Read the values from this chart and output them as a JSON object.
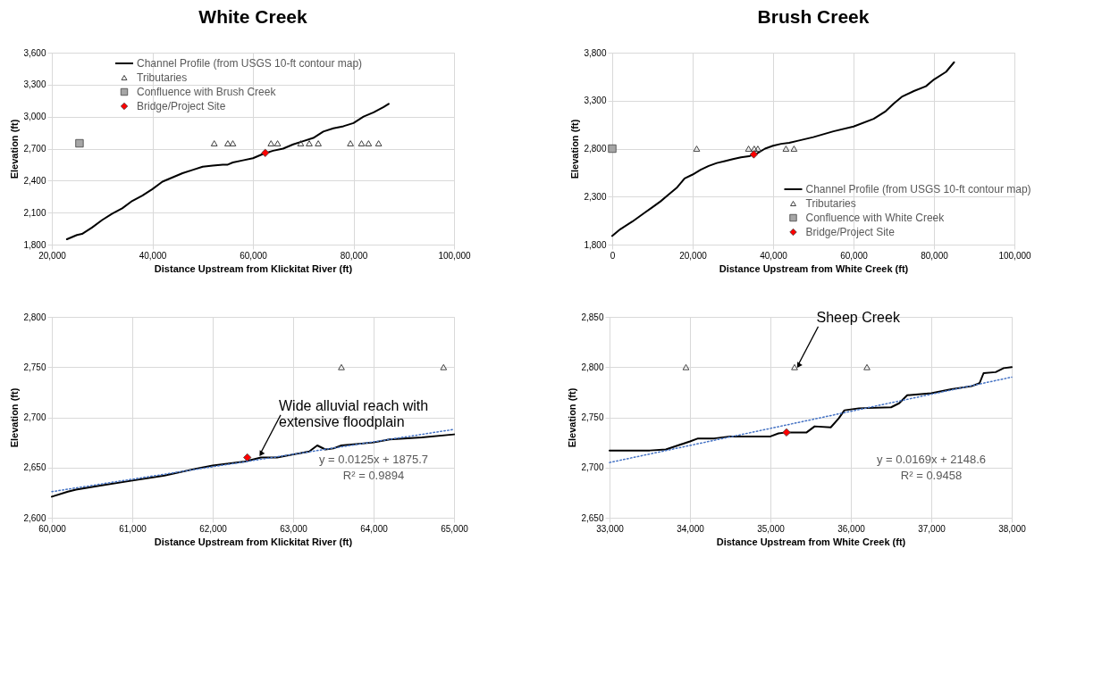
{
  "chart_data": [
    {
      "type": "line",
      "title": "White Creek",
      "xlabel": "Distance Upstream from Klickitat River (ft)",
      "ylabel": "Elevation (ft)",
      "xlim": [
        20000,
        100000
      ],
      "xticks": [
        {
          "value": 20000,
          "label": "20,000"
        },
        {
          "value": 40000,
          "label": "40,000"
        },
        {
          "value": 60000,
          "label": "60,000"
        },
        {
          "value": 80000,
          "label": "80,000"
        },
        {
          "value": 100000,
          "label": "100,000"
        }
      ],
      "ylim": [
        1800,
        3600
      ],
      "yticks": [
        {
          "value": 1800,
          "label": "1,800"
        },
        {
          "value": 2100,
          "label": "2,100"
        },
        {
          "value": 2400,
          "label": "2,400"
        },
        {
          "value": 2700,
          "label": "2,700"
        },
        {
          "value": 3000,
          "label": "3,000"
        },
        {
          "value": 3300,
          "label": "3,300"
        },
        {
          "value": 3600,
          "label": "3,600"
        }
      ],
      "grid": true,
      "legend": "top",
      "series": [
        {
          "name": "Channel Profile (from USGS 10-ft contour map)",
          "line_style": "solid",
          "marker": "none",
          "color": "#000000",
          "x": [
            23000,
            25000,
            26000,
            28000,
            30000,
            32000,
            34000,
            36000,
            38000,
            40000,
            42000,
            44000,
            46000,
            48000,
            50000,
            52000,
            54000,
            55000,
            56000,
            58000,
            60000,
            62000,
            64000,
            66000,
            68000,
            70000,
            72000,
            74000,
            76000,
            78000,
            80000,
            82000,
            84000,
            86000,
            87000
          ],
          "values": [
            1850,
            1890,
            1900,
            1960,
            2030,
            2090,
            2140,
            2210,
            2260,
            2320,
            2390,
            2430,
            2470,
            2500,
            2530,
            2540,
            2550,
            2550,
            2570,
            2590,
            2610,
            2650,
            2680,
            2700,
            2740,
            2770,
            2800,
            2860,
            2890,
            2910,
            2940,
            3000,
            3040,
            3090,
            3120
          ]
        },
        {
          "name": "Tributaries",
          "type": "scatter",
          "marker": "triangle",
          "color": "#404040",
          "x": [
            52300,
            55000,
            56000,
            63600,
            64900,
            69500,
            71200,
            73000,
            79400,
            81600,
            83000,
            85000
          ],
          "values": [
            2750,
            2750,
            2750,
            2750,
            2750,
            2750,
            2750,
            2750,
            2750,
            2750,
            2750,
            2750
          ]
        },
        {
          "name": "Confluence with Brush Creek",
          "type": "scatter",
          "marker": "square",
          "color": "#a6a6a6",
          "x": [
            25500
          ],
          "values": [
            2750
          ]
        },
        {
          "name": "Bridge/Project Site",
          "type": "scatter",
          "marker": "diamond",
          "color": "#ff0000",
          "x": [
            62450
          ],
          "values": [
            2660
          ]
        }
      ]
    },
    {
      "type": "line",
      "title": "Brush Creek",
      "xlabel": "Distance Upstream from White Creek (ft)",
      "ylabel": "Elevation (ft)",
      "xlim": [
        0,
        100000
      ],
      "xticks": [
        0,
        {
          "value": 20000,
          "label": "20,000"
        },
        {
          "value": 40000,
          "label": "40,000"
        },
        {
          "value": 60000,
          "label": "60,000"
        },
        {
          "value": 80000,
          "label": "80,000"
        },
        {
          "value": 100000,
          "label": "100,000"
        }
      ],
      "ylim": [
        1800,
        3800
      ],
      "yticks": [
        {
          "value": 1800,
          "label": "1,800"
        },
        {
          "value": 2300,
          "label": "2,300"
        },
        {
          "value": 2800,
          "label": "2,800"
        },
        {
          "value": 3300,
          "label": "3,300"
        },
        {
          "value": 3800,
          "label": "3,800"
        }
      ],
      "grid": true,
      "legend": "bottom right",
      "series": [
        {
          "name": "Channel Profile (from USGS 10-ft contour map)",
          "line_style": "solid",
          "marker": "none",
          "color": "#000000",
          "x": [
            0,
            2000,
            5000,
            8000,
            10000,
            12000,
            14000,
            16000,
            18000,
            20000,
            22000,
            24000,
            26000,
            28000,
            30000,
            32000,
            34000,
            36000,
            38000,
            40000,
            42000,
            44000,
            46000,
            50000,
            55000,
            60000,
            65000,
            68000,
            70000,
            72000,
            75000,
            78000,
            80000,
            83000,
            85000
          ],
          "values": [
            1890,
            1960,
            2040,
            2130,
            2190,
            2250,
            2320,
            2390,
            2490,
            2530,
            2580,
            2620,
            2650,
            2670,
            2690,
            2710,
            2720,
            2750,
            2800,
            2830,
            2850,
            2860,
            2880,
            2920,
            2980,
            3030,
            3110,
            3190,
            3270,
            3340,
            3400,
            3450,
            3520,
            3600,
            3700
          ]
        },
        {
          "name": "Tributaries",
          "type": "scatter",
          "marker": "triangle",
          "color": "#404040",
          "x": [
            21000,
            33900,
            35300,
            36200,
            43200,
            45200
          ],
          "values": [
            2800,
            2800,
            2800,
            2800,
            2800,
            2800
          ]
        },
        {
          "name": "Confluence with White Creek",
          "type": "scatter",
          "marker": "square",
          "color": "#a6a6a6",
          "x": [
            0
          ],
          "values": [
            2800
          ]
        },
        {
          "name": "Bridge/Project Site",
          "type": "scatter",
          "marker": "diamond",
          "color": "#ff0000",
          "x": [
            35200
          ],
          "values": [
            2740
          ]
        }
      ]
    },
    {
      "type": "line",
      "xlabel": "Distance Upstream from Klickitat River (ft)",
      "ylabel": "Elevation (ft)",
      "xlim": [
        60000,
        65000
      ],
      "xticks": [
        {
          "value": 60000,
          "label": "60,000"
        },
        {
          "value": 61000,
          "label": "61,000"
        },
        {
          "value": 62000,
          "label": "62,000"
        },
        {
          "value": 63000,
          "label": "63,000"
        },
        {
          "value": 64000,
          "label": "64,000"
        },
        {
          "value": 65000,
          "label": "65,000"
        }
      ],
      "ylim": [
        2600,
        2800
      ],
      "yticks": [
        {
          "value": 2600,
          "label": "2,600"
        },
        {
          "value": 2650,
          "label": "2,650"
        },
        {
          "value": 2700,
          "label": "2,700"
        },
        {
          "value": 2750,
          "label": "2,750"
        },
        {
          "value": 2800,
          "label": "2,800"
        }
      ],
      "grid": true,
      "annotations": [
        "y = 0.0125x + 1875.7",
        "R² = 0.9894",
        {
          "text": "Wide alluvial reach with\nextensive floodplain",
          "x": 62600,
          "y": 2665
        }
      ],
      "series": [
        {
          "line_style": "solid",
          "marker": "none",
          "color": "#000000",
          "x": [
            60000,
            60200,
            60300,
            60600,
            61000,
            61400,
            61800,
            62000,
            62400,
            62600,
            62800,
            63000,
            63200,
            63300,
            63400,
            63500,
            63600,
            64000,
            64200,
            64600,
            65000
          ],
          "values": [
            2621,
            2626,
            2628,
            2632,
            2637,
            2642,
            2649,
            2652,
            2656,
            2660,
            2660,
            2663,
            2666,
            2672,
            2668,
            2669,
            2672,
            2675,
            2678,
            2680,
            2683
          ]
        },
        {
          "type": "scatter",
          "marker": "triangle",
          "color": "#404040",
          "x": [
            63600,
            64870
          ],
          "values": [
            2750,
            2750
          ]
        },
        {
          "type": "scatter",
          "marker": "diamond",
          "color": "#ff0000",
          "x": [
            62430
          ],
          "values": [
            2660
          ]
        },
        {
          "line_style": "dotted",
          "marker": "none",
          "color": "#4472c4",
          "x": [
            60000,
            65000
          ],
          "values": [
            2626,
            2688
          ]
        }
      ]
    },
    {
      "type": "line",
      "xlabel": "Distance Upstream from White Creek (ft)",
      "ylabel": "Elevation (ft)",
      "xlim": [
        33000,
        38000
      ],
      "xticks": [
        {
          "value": 33000,
          "label": "33,000"
        },
        {
          "value": 34000,
          "label": "34,000"
        },
        {
          "value": 35000,
          "label": "35,000"
        },
        {
          "value": 36000,
          "label": "36,000"
        },
        {
          "value": 37000,
          "label": "37,000"
        },
        {
          "value": 38000,
          "label": "38,000"
        }
      ],
      "ylim": [
        2650,
        2850
      ],
      "yticks": [
        {
          "value": 2650,
          "label": "2,650"
        },
        {
          "value": 2700,
          "label": "2,700"
        },
        {
          "value": 2750,
          "label": "2,750"
        },
        {
          "value": 2800,
          "label": "2,800"
        },
        {
          "value": 2850,
          "label": "2,850"
        }
      ],
      "grid": true,
      "annotations": [
        "y = 0.0169x + 2148.6",
        "R² = 0.9458",
        {
          "text": "Sheep Creek",
          "x": 35350,
          "y": 2803
        }
      ],
      "series": [
        {
          "line_style": "solid",
          "marker": "none",
          "color": "#000000",
          "x": [
            33000,
            33500,
            33700,
            34000,
            34100,
            34300,
            34500,
            35000,
            35100,
            35200,
            35450,
            35550,
            35750,
            35850,
            35920,
            36100,
            36500,
            36600,
            36700,
            37000,
            37250,
            37500,
            37600,
            37650,
            37800,
            37900,
            38000
          ],
          "values": [
            2717,
            2717,
            2718,
            2726,
            2729,
            2729,
            2731,
            2731,
            2734,
            2735,
            2735,
            2741,
            2740,
            2749,
            2757,
            2759,
            2760,
            2764,
            2772,
            2774,
            2778,
            2781,
            2784,
            2794,
            2795,
            2799,
            2800
          ]
        },
        {
          "type": "scatter",
          "marker": "triangle",
          "color": "#404040",
          "x": [
            33950,
            35300,
            36200
          ],
          "values": [
            2800,
            2800,
            2800
          ]
        },
        {
          "type": "scatter",
          "marker": "diamond",
          "color": "#ff0000",
          "x": [
            35200
          ],
          "values": [
            2735
          ]
        },
        {
          "line_style": "dotted",
          "marker": "none",
          "color": "#4472c4",
          "x": [
            33000,
            38000
          ],
          "values": [
            2705,
            2790
          ]
        }
      ]
    }
  ]
}
